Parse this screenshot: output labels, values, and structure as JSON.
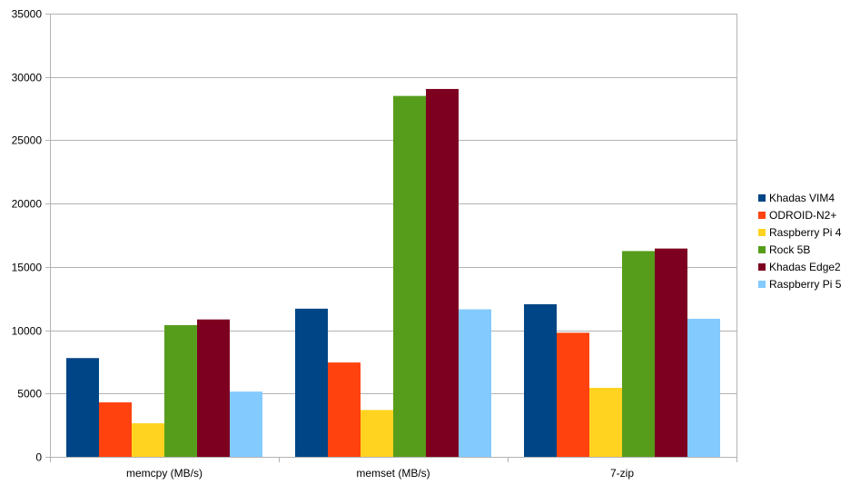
{
  "chart_data": {
    "type": "bar",
    "title": "",
    "xlabel": "",
    "ylabel": "",
    "categories": [
      "memcpy (MB/s)",
      "memset (MB/s)",
      "7-zip"
    ],
    "ylim": [
      0,
      35000
    ],
    "yticks": [
      "0",
      "5000",
      "10000",
      "15000",
      "20000",
      "25000",
      "30000",
      "35000"
    ],
    "ytick_values": [
      0,
      5000,
      10000,
      15000,
      20000,
      25000,
      30000,
      35000
    ],
    "grid": true,
    "legend_position": "right",
    "series": [
      {
        "name": "Khadas VIM4",
        "color": "#004586",
        "values": [
          7800,
          11700,
          12050
        ]
      },
      {
        "name": "ODROID-N2+",
        "color": "#ff420e",
        "values": [
          4300,
          7450,
          9800
        ]
      },
      {
        "name": "Raspberry Pi 4",
        "color": "#ffd320",
        "values": [
          2650,
          3700,
          5450
        ]
      },
      {
        "name": "Rock 5B",
        "color": "#579d1c",
        "values": [
          10400,
          28500,
          16250
        ]
      },
      {
        "name": "Khadas Edge2",
        "color": "#7e0021",
        "values": [
          10850,
          29050,
          16450
        ]
      },
      {
        "name": "Raspberry Pi 5",
        "color": "#83caff",
        "values": [
          5150,
          11650,
          10900
        ]
      }
    ]
  }
}
